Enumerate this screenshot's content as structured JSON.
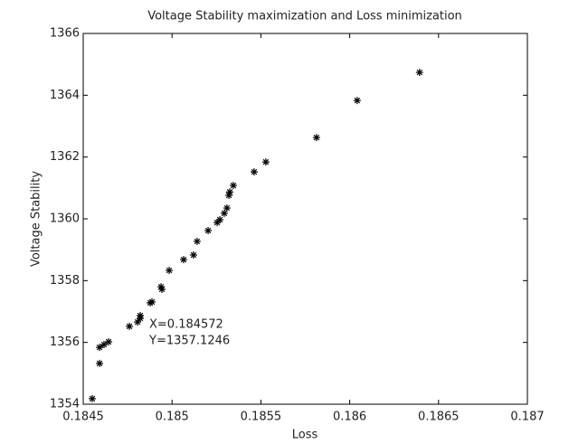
{
  "chart_data": {
    "type": "scatter",
    "title": "Voltage Stability maximization and Loss minimization",
    "x_label": "Loss",
    "y_label": "Voltage Stability",
    "annotations": [
      "X=0.184572",
      "Y=1357.1246"
    ],
    "color": "#000000",
    "marker": "*",
    "series": [
      {
        "x": [
          0.184551,
          0.184592,
          0.184592,
          0.184617,
          0.184643,
          0.18476,
          0.184806,
          0.184821,
          0.184821,
          0.184877,
          0.184887,
          0.184943,
          0.184938,
          0.184984,
          0.185065,
          0.185121,
          0.185141,
          0.185203,
          0.185254,
          0.185269,
          0.185294,
          0.185309,
          0.18532,
          0.185325,
          0.185345,
          0.185462,
          0.185528,
          0.185813,
          0.186042,
          0.186393
        ],
        "values": [
          1354.18,
          1355.32,
          1355.84,
          1355.93,
          1356.02,
          1356.52,
          1356.66,
          1356.78,
          1356.87,
          1357.28,
          1357.31,
          1357.72,
          1357.8,
          1358.33,
          1358.68,
          1358.83,
          1359.27,
          1359.62,
          1359.88,
          1359.97,
          1360.18,
          1360.35,
          1360.76,
          1360.87,
          1361.08,
          1361.52,
          1361.84,
          1362.63,
          1363.83,
          1364.74
        ]
      }
    ],
    "xlim": [
      0.1845,
      0.187
    ],
    "xticks": [
      0.1845,
      0.185,
      0.1855,
      0.186,
      0.1865,
      0.187
    ],
    "ylim": [
      1354,
      1366
    ],
    "yticks": [
      1354,
      1356,
      1358,
      1360,
      1362,
      1364,
      1366
    ]
  }
}
